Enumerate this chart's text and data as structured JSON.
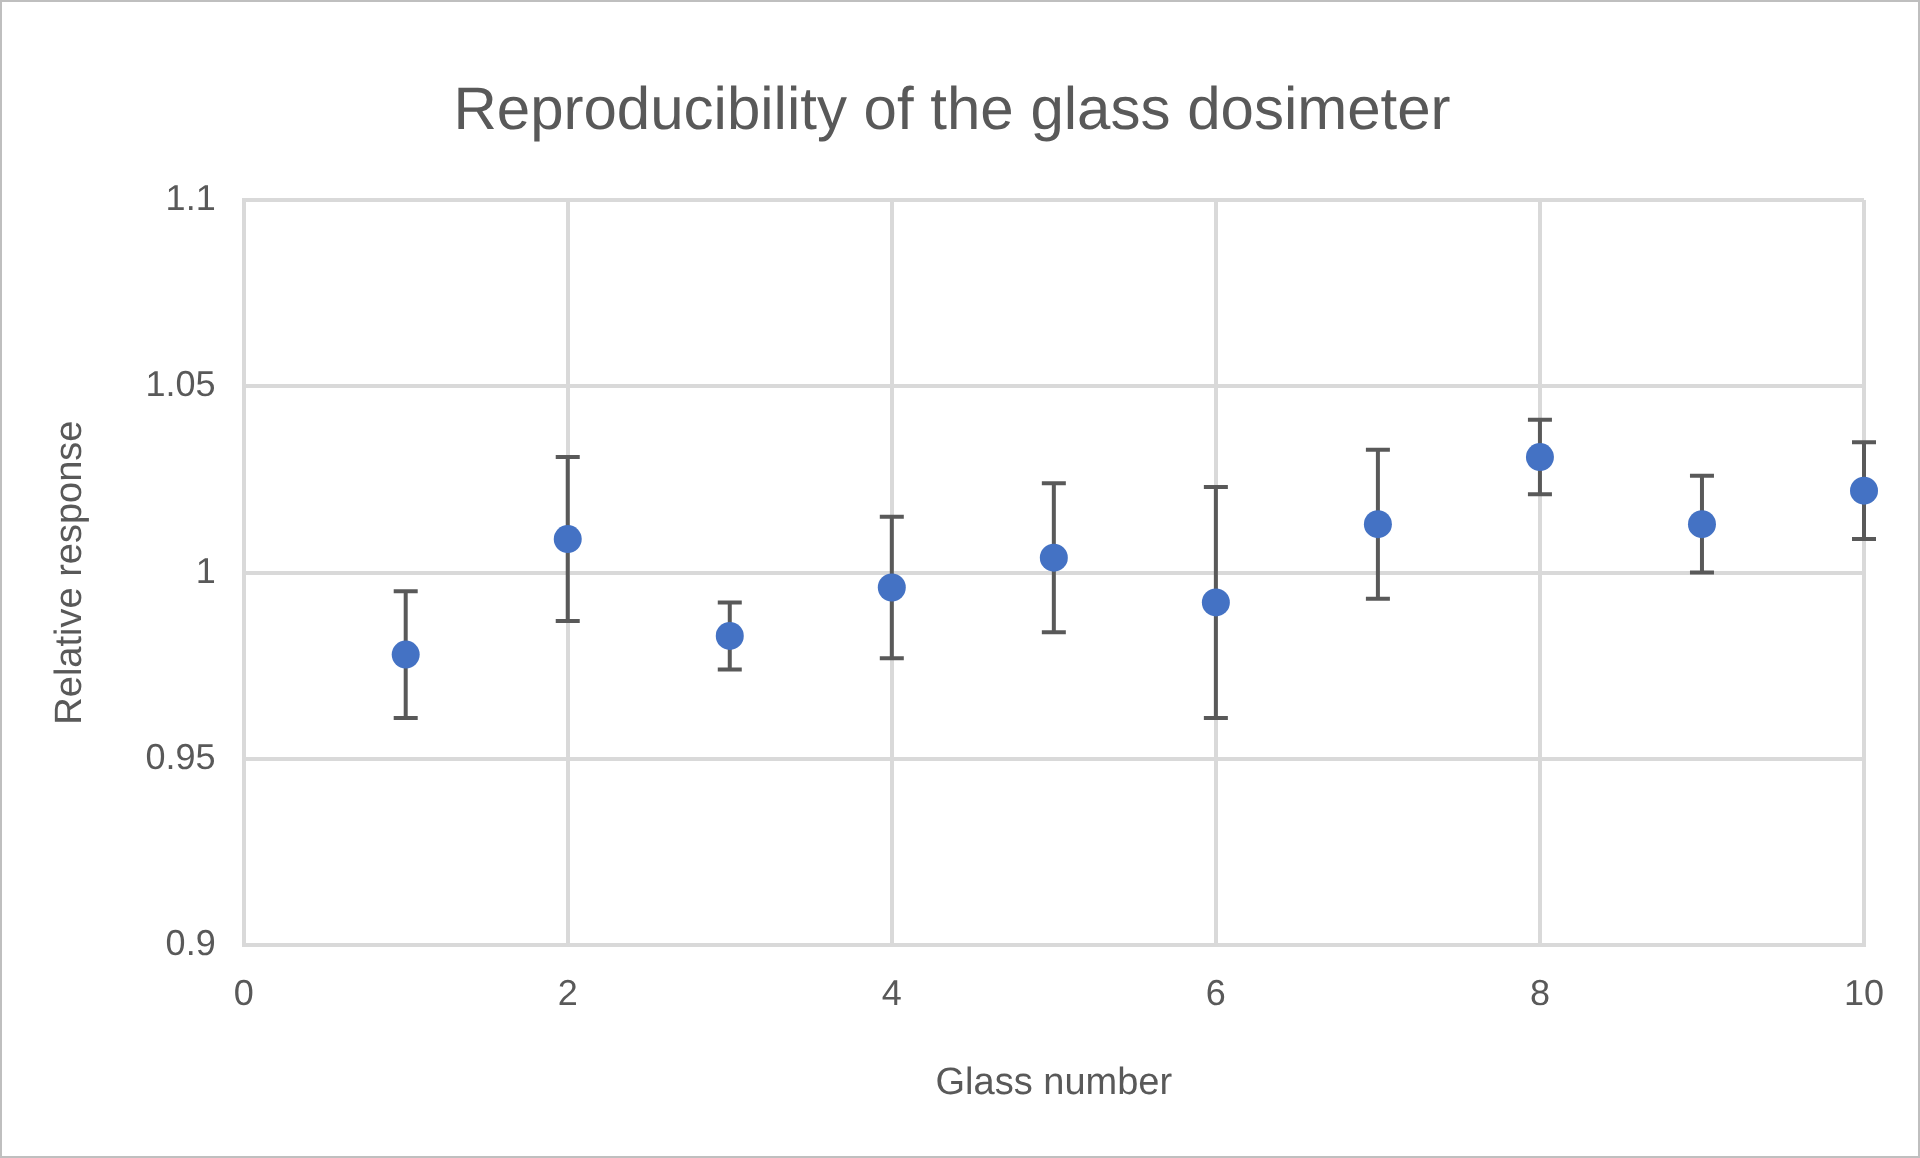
{
  "chart_data": {
    "type": "scatter",
    "title": "Reproducibility of the glass dosimeter",
    "xlabel": "Glass number",
    "ylabel": "Relative response",
    "x": [
      1,
      2,
      3,
      4,
      5,
      6,
      7,
      8,
      9,
      10
    ],
    "series": [
      {
        "color": "#4472c4",
        "values": [
          0.978,
          1.009,
          0.983,
          0.996,
          1.004,
          0.992,
          1.013,
          1.031,
          1.013,
          1.022
        ],
        "errors": [
          0.017,
          0.022,
          0.009,
          0.019,
          0.02,
          0.031,
          0.02,
          0.01,
          0.013,
          0.013
        ]
      }
    ],
    "xlim": [
      0,
      10
    ],
    "xticks": [
      0,
      2,
      4,
      6,
      8,
      10
    ],
    "ylim": [
      0.9,
      1.1
    ],
    "yticks": [
      0.9,
      0.95,
      1,
      1.05,
      1.1
    ],
    "grid": true,
    "legend": false,
    "marker": "circle"
  }
}
